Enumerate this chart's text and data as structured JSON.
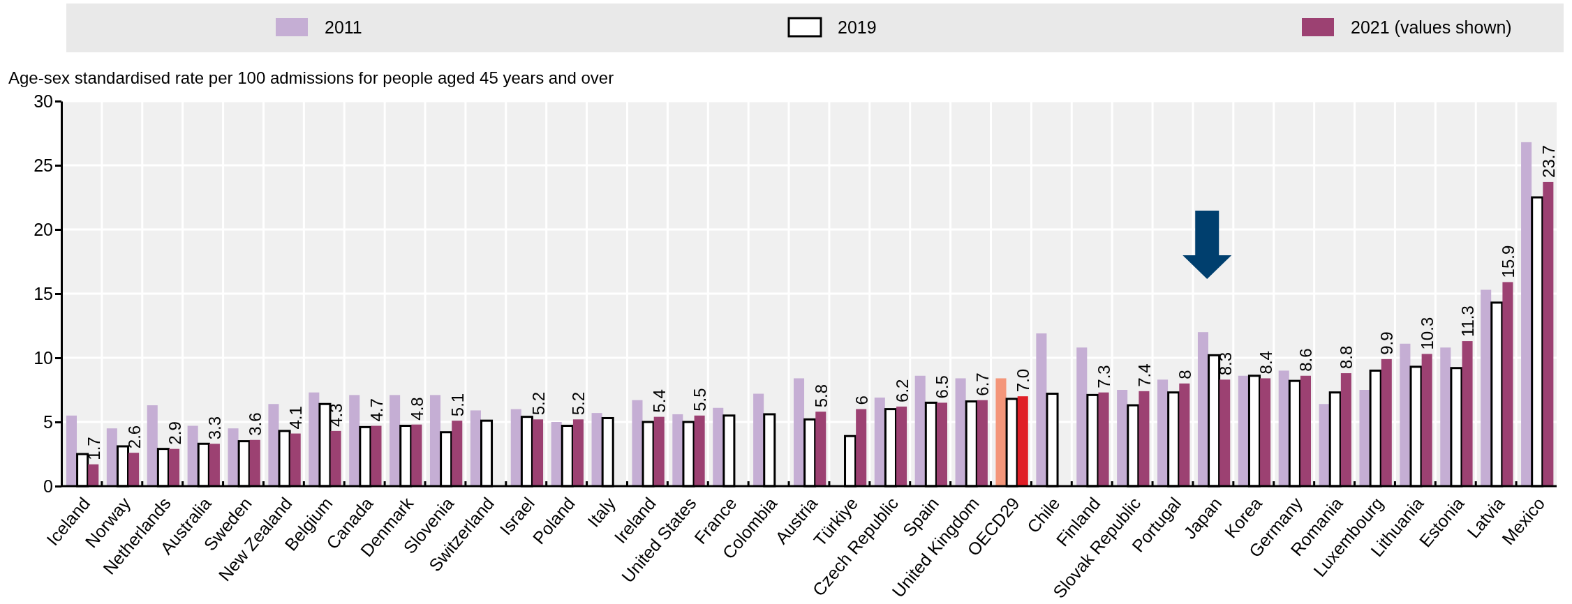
{
  "chart_data": {
    "type": "bar",
    "ylabel": "Age-sex standardised rate per 100 admissions for people aged 45 years and over",
    "categories": [
      "Iceland",
      "Norway",
      "Netherlands",
      "Australia",
      "Sweden",
      "New Zealand",
      "Belgium",
      "Canada",
      "Denmark",
      "Slovenia",
      "Switzerland",
      "Israel",
      "Poland",
      "Italy",
      "Ireland",
      "United States",
      "France",
      "Colombia",
      "Austria",
      "Türkiye",
      "Czech Republic",
      "Spain",
      "United Kingdom",
      "OECD29",
      "Chile",
      "Finland",
      "Slovak Republic",
      "Portugal",
      "Japan",
      "Korea",
      "Germany",
      "Romania",
      "Luxembourg",
      "Lithuania",
      "Estonia",
      "Latvia",
      "Mexico"
    ],
    "series": [
      {
        "name": "2011",
        "color": "#c5aed4",
        "colors": [
          "#c5aed4",
          "#c5aed4",
          "#c5aed4",
          "#c5aed4",
          "#c5aed4",
          "#c5aed4",
          "#c5aed4",
          "#c5aed4",
          "#c5aed4",
          "#c5aed4",
          "#c5aed4",
          "#c5aed4",
          "#c5aed4",
          "#c5aed4",
          "#c5aed4",
          "#c5aed4",
          "#c5aed4",
          "#c5aed4",
          "#c5aed4",
          "#c5aed4",
          "#c5aed4",
          "#c5aed4",
          "#c5aed4",
          "#f4967a",
          "#c5aed4",
          "#c5aed4",
          "#c5aed4",
          "#c5aed4",
          "#c5aed4",
          "#c5aed4",
          "#c5aed4",
          "#c5aed4",
          "#c5aed4",
          "#c5aed4",
          "#c5aed4",
          "#c5aed4",
          "#c5aed4"
        ],
        "values": [
          5.5,
          4.5,
          6.3,
          4.7,
          4.5,
          6.4,
          7.3,
          7.1,
          7.1,
          7.1,
          5.9,
          6.0,
          5.0,
          5.7,
          6.7,
          5.6,
          6.1,
          7.2,
          8.4,
          null,
          6.9,
          8.6,
          8.4,
          8.4,
          11.9,
          10.8,
          7.5,
          8.3,
          12.0,
          8.6,
          9.0,
          6.4,
          7.5,
          11.1,
          10.8,
          15.3,
          26.8
        ]
      },
      {
        "name": "2019",
        "color": "#ffffff",
        "values": [
          2.5,
          3.1,
          2.9,
          3.3,
          3.5,
          4.3,
          6.4,
          4.6,
          4.7,
          4.2,
          5.1,
          5.4,
          4.7,
          5.3,
          5.0,
          5.0,
          5.5,
          5.6,
          5.2,
          3.9,
          6.0,
          6.5,
          6.6,
          6.8,
          7.2,
          7.1,
          6.3,
          7.3,
          10.2,
          8.6,
          8.2,
          7.3,
          9.0,
          9.3,
          9.2,
          14.3,
          22.5
        ]
      },
      {
        "name": "2021 (values shown)",
        "color": "#9c4172",
        "colors": [
          "#9c4172",
          "#9c4172",
          "#9c4172",
          "#9c4172",
          "#9c4172",
          "#9c4172",
          "#9c4172",
          "#9c4172",
          "#9c4172",
          "#9c4172",
          "#9c4172",
          "#9c4172",
          "#9c4172",
          "#9c4172",
          "#9c4172",
          "#9c4172",
          "#9c4172",
          "#9c4172",
          "#9c4172",
          "#9c4172",
          "#9c4172",
          "#9c4172",
          "#9c4172",
          "#e01e26",
          "#9c4172",
          "#9c4172",
          "#9c4172",
          "#9c4172",
          "#9c4172",
          "#9c4172",
          "#9c4172",
          "#9c4172",
          "#9c4172",
          "#9c4172",
          "#9c4172",
          "#9c4172",
          "#9c4172"
        ],
        "values": [
          1.7,
          2.6,
          2.9,
          3.3,
          3.6,
          4.1,
          4.3,
          4.7,
          4.8,
          5.1,
          null,
          5.2,
          5.2,
          null,
          5.4,
          5.5,
          null,
          null,
          5.8,
          6,
          6.2,
          6.5,
          6.7,
          7.0,
          null,
          7.3,
          7.4,
          8,
          8.3,
          8.4,
          8.6,
          8.8,
          9.9,
          10.3,
          11.3,
          15.9,
          23.7
        ],
        "value_labels": [
          "1.7",
          "2.6",
          "2.9",
          "3.3",
          "3.6",
          "4.1",
          "4.3",
          "4.7",
          "4.8",
          "5.1",
          null,
          "5.2",
          "5.2",
          null,
          "5.4",
          "5.5",
          null,
          null,
          "5.8",
          "6",
          "6.2",
          "6.5",
          "6.7",
          "7.0",
          null,
          "7.3",
          "7.4",
          "8",
          "8.3",
          "8.4",
          "8.6",
          "8.8",
          "9.9",
          "10.3",
          "11.3",
          "15.9",
          "23.7"
        ]
      }
    ],
    "ylim": [
      0,
      30
    ],
    "yticks": [
      0,
      5,
      10,
      15,
      20,
      25,
      30
    ],
    "grid": true,
    "legend": "top"
  }
}
